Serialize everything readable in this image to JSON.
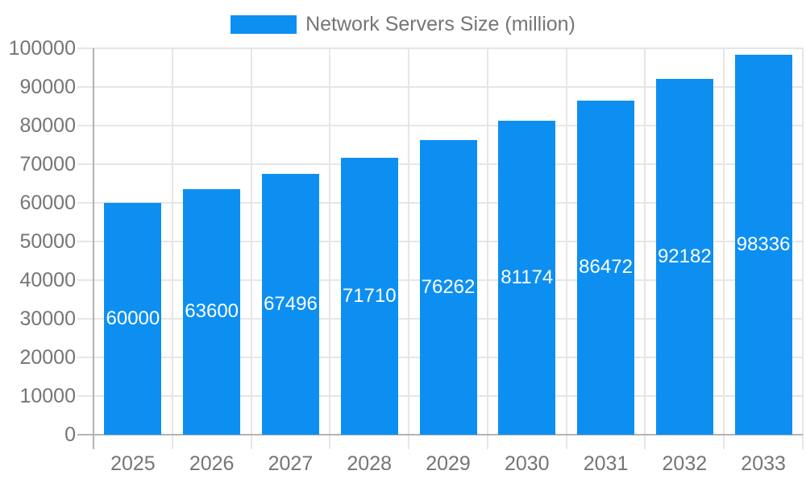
{
  "legend": {
    "label": "Network Servers Size (million)"
  },
  "chart_data": {
    "type": "bar",
    "title": "Network Servers Size (million)",
    "series_name": "Network Servers Size (million)",
    "categories": [
      "2025",
      "2026",
      "2027",
      "2028",
      "2029",
      "2030",
      "2031",
      "2032",
      "2033"
    ],
    "values": [
      60000,
      63600,
      67496,
      71710,
      76262,
      81174,
      86472,
      92182,
      98336
    ],
    "bar_value_labels": [
      "60000",
      "63600",
      "67496",
      "71710",
      "76262",
      "81174",
      "86472",
      "92182",
      "98336"
    ],
    "xlabel": "",
    "ylabel": "",
    "ylim": [
      0,
      100000
    ],
    "ytick_step": 10000,
    "yticks": [
      0,
      10000,
      20000,
      30000,
      40000,
      50000,
      60000,
      70000,
      80000,
      90000,
      100000
    ],
    "ytick_labels": [
      "0",
      "10000",
      "20000",
      "30000",
      "40000",
      "50000",
      "60000",
      "70000",
      "80000",
      "90000",
      "100000"
    ],
    "grid": true,
    "legend_position": "top-center",
    "value_label_position": "inside-center"
  },
  "colors": {
    "bar": "#0d8ff2",
    "grid_line": "#e6e6e6",
    "axis_line": "#b3b3b3",
    "tick_text": "#757575",
    "bar_label_text": "#ffffff",
    "background": "#ffffff"
  }
}
